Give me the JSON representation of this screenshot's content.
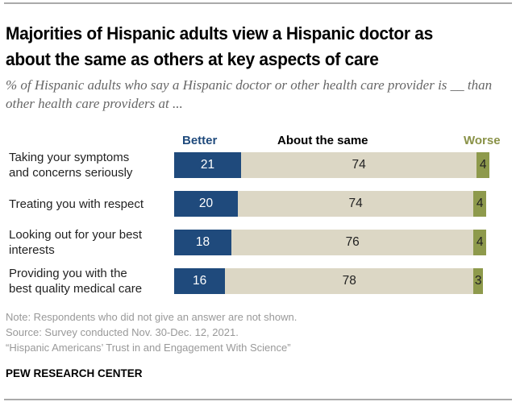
{
  "title": "Majorities of Hispanic adults view a Hispanic doctor as about the same as others at key aspects of care",
  "subtitle": "% of Hispanic adults who say a Hispanic doctor or other health care provider is __ than other health care providers at ...",
  "notes": {
    "note": "Note: Respondents who did not give an answer are not shown.",
    "source": "Source: Survey conducted Nov. 30-Dec. 12, 2021.",
    "report": "“Hispanic Americans’ Trust in and Engagement With Science”"
  },
  "brand": "PEW RESEARCH CENTER",
  "colors": {
    "better": "#1f4a7c",
    "same": "#dcd7c5",
    "worse": "#8e9a4c"
  },
  "chart_data": {
    "type": "bar",
    "orientation": "horizontal-stacked",
    "title": "Majorities of Hispanic adults view a Hispanic doctor as about the same as others at key aspects of care",
    "subtitle": "% of Hispanic adults who say a Hispanic doctor or other health care provider is __ than other health care providers at ...",
    "categories": [
      "Taking your symptoms and concerns seriously",
      "Treating you with respect",
      "Looking out for your best interests",
      "Providing you with the best quality medical care"
    ],
    "category_lines": [
      [
        "Taking your symptoms",
        "and concerns seriously"
      ],
      [
        "Treating you with respect"
      ],
      [
        "Looking out for your best",
        "interests"
      ],
      [
        "Providing you with the",
        "best quality medical care"
      ]
    ],
    "series": [
      {
        "name": "Better",
        "values": [
          21,
          20,
          18,
          16
        ]
      },
      {
        "name": "About the same",
        "values": [
          74,
          74,
          76,
          78
        ]
      },
      {
        "name": "Worse",
        "values": [
          4,
          4,
          4,
          3
        ]
      }
    ],
    "xlim": [
      0,
      100
    ],
    "grid": false,
    "legend": "top"
  }
}
